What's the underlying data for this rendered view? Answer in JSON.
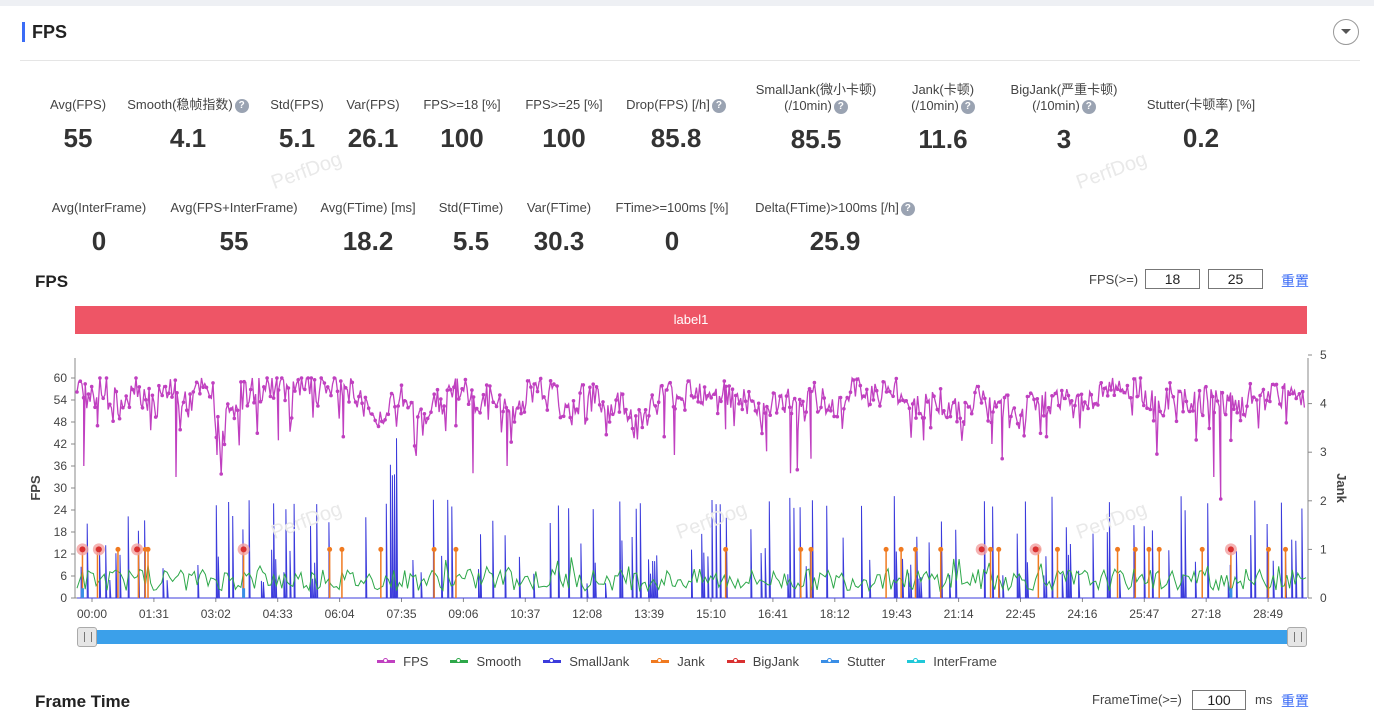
{
  "section": {
    "title": "FPS"
  },
  "stats_row1": [
    {
      "label": "Avg(FPS)",
      "value": "55",
      "help": false
    },
    {
      "label": "Smooth(稳帧指数)",
      "value": "4.1",
      "help": true
    },
    {
      "label": "Std(FPS)",
      "value": "5.1",
      "help": false
    },
    {
      "label": "Var(FPS)",
      "value": "26.1",
      "help": false
    },
    {
      "label": "FPS>=18 [%]",
      "value": "100",
      "help": false
    },
    {
      "label": "FPS>=25 [%]",
      "value": "100",
      "help": false
    },
    {
      "label": "Drop(FPS) [/h]",
      "value": "85.8",
      "help": true
    },
    {
      "label": "SmallJank(微小卡顿)",
      "label2": "(/10min)",
      "value": "85.5",
      "help": true
    },
    {
      "label": "Jank(卡顿)",
      "label2": "(/10min)",
      "value": "11.6",
      "help": true
    },
    {
      "label": "BigJank(严重卡顿)",
      "label2": "(/10min)",
      "value": "3",
      "help": true
    },
    {
      "label": "Stutter(卡顿率) [%]",
      "value": "0.2",
      "help": false
    }
  ],
  "stats_row2": [
    {
      "label": "Avg(InterFrame)",
      "value": "0",
      "help": false
    },
    {
      "label": "Avg(FPS+InterFrame)",
      "value": "55",
      "help": false
    },
    {
      "label": "Avg(FTime) [ms]",
      "value": "18.2",
      "help": false
    },
    {
      "label": "Std(FTime)",
      "value": "5.5",
      "help": false
    },
    {
      "label": "Var(FTime)",
      "value": "30.3",
      "help": false
    },
    {
      "label": "FTime>=100ms [%]",
      "value": "0",
      "help": false
    },
    {
      "label": "Delta(FTime)>100ms [/h]",
      "value": "25.9",
      "help": true
    }
  ],
  "fps_chart": {
    "title": "FPS",
    "threshold_label": "FPS(>=)",
    "threshold1": "18",
    "threshold2": "25",
    "reset_label": "重置",
    "label_bar": "label1",
    "watermark": "PerfDog"
  },
  "frame_time": {
    "title": "Frame Time",
    "threshold_label": "FrameTime(>=)",
    "threshold": "100",
    "unit": "ms",
    "reset_label": "重置"
  },
  "legend": [
    {
      "name": "FPS",
      "color": "#c040c0"
    },
    {
      "name": "Smooth",
      "color": "#2ea84a"
    },
    {
      "name": "SmallJank",
      "color": "#3b3bdc"
    },
    {
      "name": "Jank",
      "color": "#f07a20"
    },
    {
      "name": "BigJank",
      "color": "#d93030"
    },
    {
      "name": "Stutter",
      "color": "#3a8ee6"
    },
    {
      "name": "InterFrame",
      "color": "#20c8d8"
    }
  ],
  "chart_data": {
    "type": "line",
    "y_left": {
      "label": "FPS",
      "ticks": [
        0,
        6,
        12,
        18,
        24,
        30,
        36,
        42,
        48,
        54,
        60
      ],
      "range": [
        0,
        60
      ]
    },
    "y_right": {
      "label": "Jank",
      "ticks": [
        0,
        1,
        2,
        3,
        4,
        5
      ],
      "range": [
        0,
        5
      ]
    },
    "x_ticks": [
      "00:00",
      "01:31",
      "03:02",
      "04:33",
      "06:04",
      "07:35",
      "09:06",
      "10:37",
      "12:08",
      "13:39",
      "15:10",
      "16:41",
      "18:12",
      "19:43",
      "21:14",
      "22:45",
      "24:16",
      "25:47",
      "27:18",
      "28:49"
    ],
    "x_range_seconds": [
      0,
      1800
    ],
    "series": [
      {
        "name": "FPS",
        "color": "#c040c0"
      },
      {
        "name": "Smooth",
        "color": "#2ea84a"
      },
      {
        "name": "SmallJank",
        "color": "#3b3bdc"
      },
      {
        "name": "Jank",
        "color": "#f07a20"
      },
      {
        "name": "BigJank",
        "color": "#d93030"
      },
      {
        "name": "Stutter",
        "color": "#3a8ee6"
      },
      {
        "name": "InterFrame",
        "color": "#20c8d8"
      }
    ],
    "fps_profile": [
      [
        0,
        57
      ],
      [
        20,
        55
      ],
      [
        40,
        58
      ],
      [
        60,
        52
      ],
      [
        80,
        59
      ],
      [
        100,
        55
      ],
      [
        120,
        54
      ],
      [
        140,
        58
      ],
      [
        160,
        52
      ],
      [
        180,
        57
      ],
      [
        200,
        55
      ],
      [
        210,
        44
      ],
      [
        220,
        50
      ],
      [
        240,
        55
      ],
      [
        260,
        57
      ],
      [
        280,
        58
      ],
      [
        300,
        58
      ],
      [
        320,
        56
      ],
      [
        340,
        58
      ],
      [
        360,
        57
      ],
      [
        380,
        58
      ],
      [
        400,
        58
      ],
      [
        420,
        52
      ],
      [
        440,
        47
      ],
      [
        460,
        55
      ],
      [
        480,
        54
      ],
      [
        500,
        49
      ],
      [
        520,
        52
      ],
      [
        540,
        55
      ],
      [
        560,
        58
      ],
      [
        580,
        53
      ],
      [
        600,
        55
      ],
      [
        620,
        52
      ],
      [
        640,
        50
      ],
      [
        660,
        56
      ],
      [
        680,
        58
      ],
      [
        700,
        55
      ],
      [
        720,
        49
      ],
      [
        740,
        56
      ],
      [
        760,
        54
      ],
      [
        780,
        51
      ],
      [
        800,
        54
      ],
      [
        820,
        47
      ],
      [
        840,
        52
      ],
      [
        860,
        56
      ],
      [
        880,
        55
      ],
      [
        900,
        58
      ],
      [
        920,
        56
      ],
      [
        940,
        58
      ],
      [
        960,
        54
      ],
      [
        980,
        54
      ],
      [
        1000,
        49
      ],
      [
        1020,
        53
      ],
      [
        1040,
        54
      ],
      [
        1060,
        50
      ],
      [
        1080,
        55
      ],
      [
        1100,
        54
      ],
      [
        1120,
        52
      ],
      [
        1140,
        58
      ],
      [
        1160,
        56
      ],
      [
        1180,
        57
      ],
      [
        1200,
        56
      ],
      [
        1220,
        53
      ],
      [
        1240,
        52
      ],
      [
        1260,
        55
      ],
      [
        1280,
        50
      ],
      [
        1300,
        52
      ],
      [
        1320,
        56
      ],
      [
        1340,
        50
      ],
      [
        1360,
        52
      ],
      [
        1380,
        48
      ],
      [
        1400,
        55
      ],
      [
        1420,
        53
      ],
      [
        1440,
        55
      ],
      [
        1460,
        52
      ],
      [
        1480,
        54
      ],
      [
        1500,
        57
      ],
      [
        1520,
        58
      ],
      [
        1540,
        58
      ],
      [
        1560,
        57
      ],
      [
        1580,
        51
      ],
      [
        1600,
        55
      ],
      [
        1620,
        53
      ],
      [
        1640,
        53
      ],
      [
        1660,
        54
      ],
      [
        1680,
        54
      ],
      [
        1700,
        50
      ],
      [
        1720,
        55
      ],
      [
        1740,
        53
      ],
      [
        1760,
        56
      ],
      [
        1780,
        54
      ],
      [
        1800,
        56
      ]
    ],
    "fps_dips": [
      [
        10,
        36
      ],
      [
        30,
        47
      ],
      [
        145,
        33
      ],
      [
        205,
        39
      ],
      [
        295,
        43
      ],
      [
        390,
        44
      ],
      [
        555,
        47
      ],
      [
        580,
        34
      ],
      [
        630,
        36
      ],
      [
        860,
        44
      ],
      [
        875,
        39
      ],
      [
        950,
        46
      ],
      [
        1010,
        40
      ],
      [
        1045,
        34
      ],
      [
        1055,
        35
      ],
      [
        1075,
        38
      ],
      [
        1240,
        43
      ],
      [
        1300,
        47
      ],
      [
        1340,
        42
      ],
      [
        1355,
        38
      ],
      [
        1420,
        44
      ],
      [
        1665,
        33
      ],
      [
        1675,
        27
      ],
      [
        1690,
        43
      ]
    ],
    "bigjank_x": [
      8,
      32,
      88,
      244,
      1325,
      1404,
      1690
    ],
    "jank_x": [
      8,
      30,
      60,
      90,
      100,
      104,
      244,
      370,
      388,
      445,
      523,
      555,
      950,
      1060,
      1075,
      1185,
      1207,
      1228,
      1265,
      1338,
      1350,
      1408,
      1436,
      1524,
      1550,
      1570,
      1585,
      1648,
      1690,
      1745,
      1770
    ]
  }
}
